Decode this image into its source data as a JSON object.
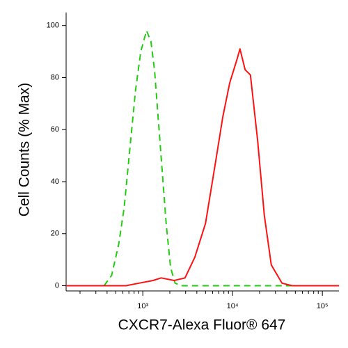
{
  "chart_data": {
    "type": "line",
    "x_label": "CXCR7-Alexa Fluor® 647",
    "y_label": "Cell Counts (% Max)",
    "xscale": "log",
    "xlim": [
      140,
      153000
    ],
    "ylim": [
      -2,
      105
    ],
    "xticks": [
      {
        "value": 1000,
        "label": "10³"
      },
      {
        "value": 10000,
        "label": "10⁴"
      },
      {
        "value": 100000,
        "label": "10⁵"
      }
    ],
    "xminor": [
      200,
      300,
      400,
      500,
      600,
      700,
      800,
      900,
      2000,
      3000,
      4000,
      5000,
      6000,
      7000,
      8000,
      9000,
      20000,
      30000,
      40000,
      50000,
      60000,
      70000,
      80000,
      90000
    ],
    "yticks": [
      0,
      20,
      40,
      60,
      80,
      100
    ],
    "series": [
      {
        "color": "#22cc11",
        "dash": true,
        "x": [
          370,
          450,
          540,
          620,
          710,
          830,
          950,
          1100,
          1230,
          1350,
          1550,
          1820,
          2040,
          2290,
          2690,
          100000
        ],
        "values": [
          0,
          4,
          16,
          30,
          51,
          75,
          90,
          98,
          94,
          83,
          56,
          24,
          7,
          1,
          0,
          0
        ]
      },
      {
        "color": "#ff1111",
        "dash": false,
        "x": [
          140,
          650,
          910,
          1300,
          1600,
          2240,
          2950,
          3800,
          5000,
          6500,
          7800,
          9300,
          11200,
          12100,
          13800,
          15800,
          19000,
          22600,
          27000,
          35500,
          46000,
          153000
        ],
        "values": [
          0,
          0,
          1,
          2,
          3,
          2,
          3,
          11,
          24,
          48,
          65,
          78,
          87,
          91,
          83,
          81,
          56,
          27,
          8,
          1,
          0,
          0
        ]
      }
    ]
  }
}
